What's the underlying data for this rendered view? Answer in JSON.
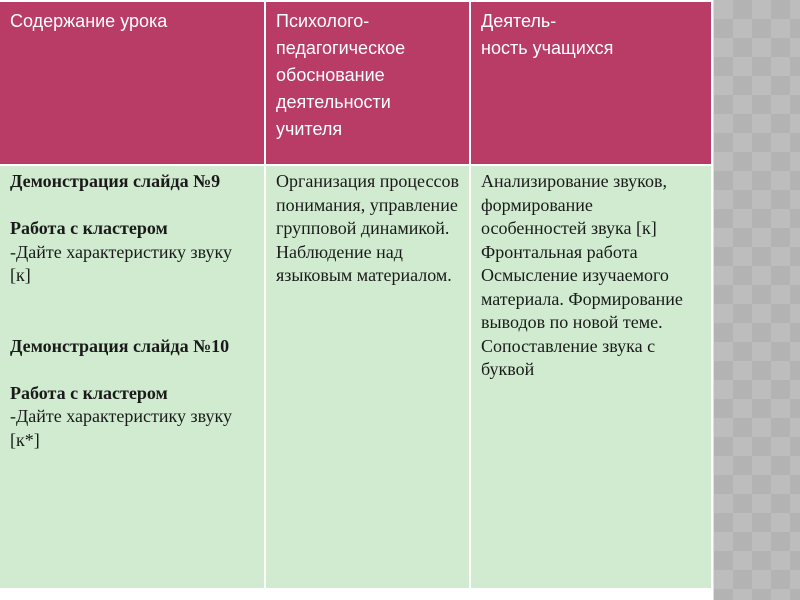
{
  "table": {
    "headers": [
      "Содержание урока",
      "Психолого-\nпедагогическое\nобоснование\nдеятельности\nучителя",
      "Деятель-\nность учащихся"
    ],
    "col1": [
      {
        "text": "Демонстрация слайда №9",
        "bold": true
      },
      {
        "text": " ",
        "bold": false
      },
      {
        "text": "Работа с кластером",
        "bold": true
      },
      {
        "text": "-Дайте характеристику звуку [к]",
        "bold": false
      },
      {
        "text": " \n ",
        "bold": false
      },
      {
        "text": "Демонстрация слайда №10",
        "bold": true
      },
      {
        "text": " ",
        "bold": false
      },
      {
        "text": "Работа с кластером",
        "bold": true
      },
      {
        "text": "-Дайте характеристику звуку [к*]",
        "bold": false
      }
    ],
    "col2": "Организация процессов понимания, управление групповой динамикой. Наблюдение над языковым материалом.",
    "col3": "Анализирование звуков, формирование особенностей звука [к] Фронтальная работа Осмысление изучаемого материала. Формирование выводов по новой теме. Сопоставление звука с буквой"
  },
  "colors": {
    "header": "#b83c66",
    "body": "#d0ebd0"
  }
}
